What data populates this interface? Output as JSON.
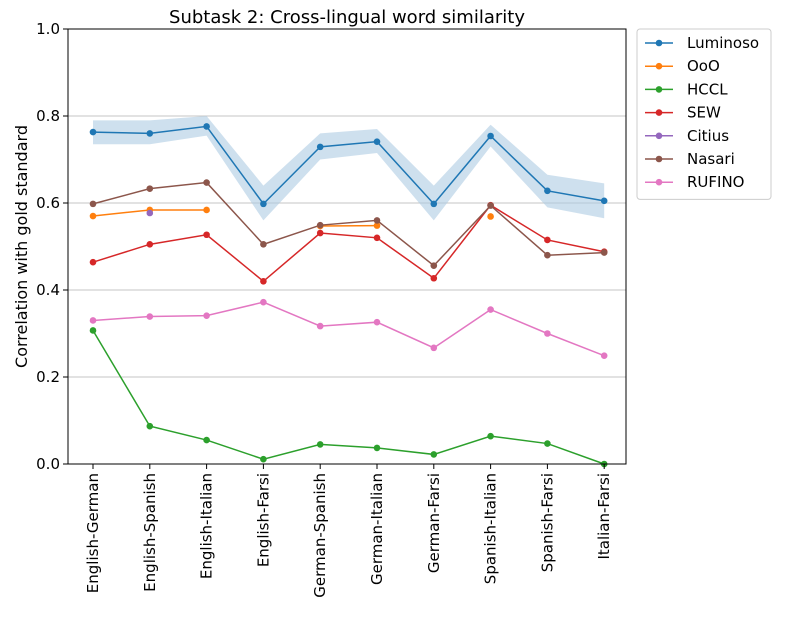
{
  "chart_data": {
    "type": "line",
    "title": "Subtask 2: Cross-lingual word similarity",
    "xlabel": "",
    "ylabel": "Correlation with gold standard",
    "ylim": [
      0.0,
      1.0
    ],
    "yticks": [
      "0.0",
      "0.2",
      "0.4",
      "0.6",
      "0.8",
      "1.0"
    ],
    "grid": "horizontal",
    "legend_position": "outside-top-right",
    "categories": [
      "English-German",
      "English-Spanish",
      "English-Italian",
      "English-Farsi",
      "German-Spanish",
      "German-Italian",
      "German-Farsi",
      "Spanish-Italian",
      "Spanish-Farsi",
      "Italian-Farsi"
    ],
    "band": {
      "series": "Luminoso",
      "color": "#aecbe3",
      "lower": [
        0.735,
        0.735,
        0.755,
        0.56,
        0.7,
        0.715,
        0.56,
        0.73,
        0.59,
        0.565
      ],
      "upper": [
        0.79,
        0.79,
        0.8,
        0.64,
        0.76,
        0.77,
        0.64,
        0.78,
        0.665,
        0.645
      ]
    },
    "series": [
      {
        "name": "Luminoso",
        "color": "#1f77b4",
        "values": [
          0.763,
          0.76,
          0.776,
          0.598,
          0.729,
          0.741,
          0.598,
          0.754,
          0.628,
          0.605
        ]
      },
      {
        "name": "OoO",
        "color": "#ff7f0e",
        "values": [
          0.57,
          0.584,
          0.584,
          null,
          0.547,
          0.548,
          null,
          0.569,
          null,
          null
        ]
      },
      {
        "name": "HCCL",
        "color": "#2ca02c",
        "values": [
          0.307,
          0.087,
          0.055,
          0.011,
          0.045,
          0.037,
          0.022,
          0.064,
          0.047,
          0.0
        ]
      },
      {
        "name": "SEW",
        "color": "#d62728",
        "values": [
          0.464,
          0.505,
          0.527,
          0.42,
          0.531,
          0.52,
          0.427,
          0.595,
          0.515,
          0.488
        ]
      },
      {
        "name": "Citius",
        "color": "#9467bd",
        "values": [
          null,
          0.577,
          null,
          null,
          null,
          null,
          null,
          null,
          null,
          null
        ]
      },
      {
        "name": "Nasari",
        "color": "#8c564b",
        "values": [
          0.598,
          0.633,
          0.647,
          0.505,
          0.549,
          0.56,
          0.456,
          0.594,
          0.48,
          0.486
        ]
      },
      {
        "name": "RUFINO",
        "color": "#e377c2",
        "values": [
          0.33,
          0.339,
          0.341,
          0.372,
          0.317,
          0.326,
          0.267,
          0.355,
          0.3,
          0.249
        ]
      }
    ]
  }
}
